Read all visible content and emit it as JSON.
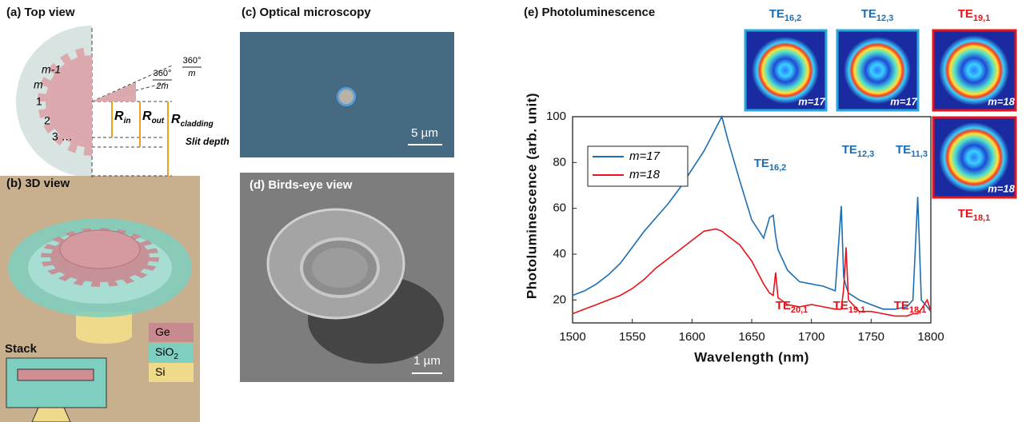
{
  "panels": {
    "a": {
      "title": "(a) Top view",
      "ring_labels": [
        "m-1",
        "m",
        "1",
        "2",
        "3 …"
      ],
      "radii": [
        {
          "text": "R",
          "sub": "in"
        },
        {
          "text": "R",
          "sub": "out"
        },
        {
          "text": "R",
          "sub": "cladding"
        }
      ],
      "slit": "Slit depth",
      "angle_half": {
        "num": "360°",
        "den": "2m"
      },
      "angle_full": {
        "num": "360°",
        "den": "m"
      }
    },
    "b": {
      "title": "(b) 3D view",
      "materials": [
        {
          "text": "Ge"
        },
        {
          "text": "SiO",
          "sub": "2"
        },
        {
          "text": "Si"
        }
      ],
      "stack": "Stack"
    },
    "c": {
      "title": "(c) Optical microscopy",
      "scale": "5 µm"
    },
    "d": {
      "title": "(d) Birds-eye view",
      "scale": "1 µm"
    },
    "e": {
      "title": "(e) Photoluminescence",
      "modes": [
        {
          "label": {
            "text": "TE",
            "sub": "16,2"
          },
          "m": "m=17"
        },
        {
          "label": {
            "text": "TE",
            "sub": "12,3"
          },
          "m": "m=17"
        },
        {
          "label": {
            "text": "TE",
            "sub": "19,1"
          },
          "m": "m=18"
        },
        {
          "label": {
            "text": "TE",
            "sub": "18,1"
          },
          "m": "m=18"
        }
      ]
    }
  },
  "chart_data": {
    "type": "line",
    "xlabel": "Wavelength (nm)",
    "ylabel": "Photoluminescence (arb. unit)",
    "x": [
      1500,
      1510,
      1520,
      1530,
      1540,
      1550,
      1560,
      1570,
      1580,
      1590,
      1600,
      1610,
      1620,
      1625,
      1630,
      1640,
      1650,
      1660,
      1665,
      1668,
      1670,
      1672,
      1680,
      1690,
      1700,
      1710,
      1720,
      1725,
      1727,
      1729,
      1731,
      1740,
      1750,
      1760,
      1770,
      1780,
      1785,
      1789,
      1792,
      1797,
      1800
    ],
    "series": [
      {
        "name": "m=17",
        "color": "#1a6fb4",
        "values": [
          22,
          24,
          27,
          31,
          36,
          43,
          50,
          56,
          62,
          69,
          77,
          85,
          95,
          100,
          90,
          72,
          55,
          47,
          56,
          57,
          48,
          42,
          33,
          28,
          27,
          26,
          24,
          61,
          30,
          26,
          23,
          20,
          18,
          16,
          16,
          17,
          20,
          65,
          20,
          17,
          15
        ]
      },
      {
        "name": "m=18",
        "color": "#e8141b",
        "values": [
          14,
          16,
          18,
          20,
          22,
          25,
          29,
          34,
          38,
          42,
          46,
          50,
          51,
          50,
          48,
          44,
          37,
          27,
          23,
          22,
          32,
          21,
          18,
          17,
          18,
          17,
          16,
          16,
          25,
          43,
          20,
          15,
          15,
          14,
          13,
          13,
          14,
          14,
          16,
          20,
          15
        ]
      }
    ],
    "xlim": [
      1500,
      1800
    ],
    "ylim": [
      10,
      100
    ],
    "xticks": [
      1500,
      1550,
      1600,
      1650,
      1700,
      1750,
      1800
    ],
    "yticks": [
      20,
      40,
      60,
      80,
      100
    ],
    "legend": "upper left",
    "annotations": [
      {
        "text": "TE",
        "sub": "16,2",
        "color": "#1a6fb4"
      },
      {
        "text": "TE",
        "sub": "12,3",
        "color": "#1a6fb4"
      },
      {
        "text": "TE",
        "sub": "11,3",
        "color": "#1a6fb4"
      },
      {
        "text": "TE",
        "sub": "20,1",
        "color": "#e8141b"
      },
      {
        "text": "TE",
        "sub": "19,1",
        "color": "#e8141b"
      },
      {
        "text": "TE",
        "sub": "18,1",
        "color": "#e8141b"
      }
    ]
  }
}
